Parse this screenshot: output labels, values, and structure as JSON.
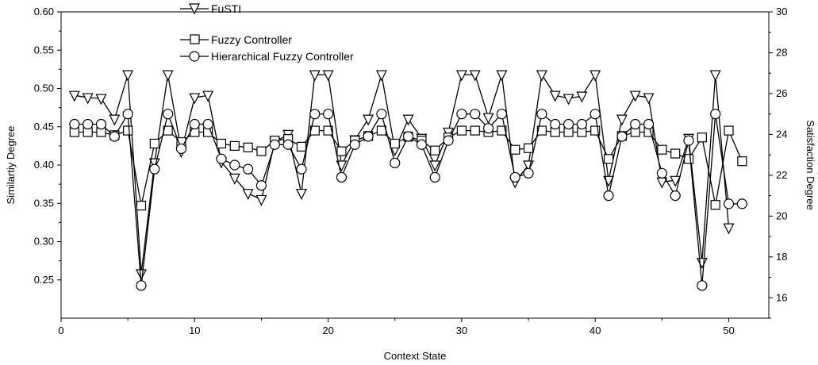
{
  "chart_data": {
    "type": "line",
    "xlabel": "Context State",
    "ylabel_left": "Similartiy Degree",
    "ylabel_right": "Satisfaction Degree",
    "xlim": [
      0,
      53
    ],
    "ylim_left": [
      0.2,
      0.6
    ],
    "ylim_right": [
      15,
      30
    ],
    "x_ticks": [
      0,
      10,
      20,
      30,
      40,
      50
    ],
    "y_left_ticks": [
      "0.25",
      "0.30",
      "0.35",
      "0.40",
      "0.45",
      "0.50",
      "0.55",
      "0.60"
    ],
    "y_right_ticks": [
      "16",
      "18",
      "20",
      "22",
      "24",
      "26",
      "28",
      "30"
    ],
    "legend_position": "top-left",
    "grid": false,
    "series": [
      {
        "name": "FuSTI",
        "axis": "left",
        "marker": "triangle-down",
        "x": [
          1,
          2,
          3,
          4,
          5,
          6,
          7,
          8,
          9,
          10,
          11,
          12,
          13,
          14,
          15,
          16,
          17,
          18,
          19,
          20,
          21,
          22,
          23,
          24,
          25,
          26,
          27,
          28,
          29,
          30,
          31,
          32,
          33,
          34,
          35,
          36,
          37,
          38,
          39,
          40,
          41,
          42,
          43,
          44,
          45,
          46,
          47,
          48,
          49,
          50
        ],
        "values": [
          0.491,
          0.488,
          0.487,
          0.46,
          0.518,
          0.258,
          0.403,
          0.518,
          0.418,
          0.488,
          0.491,
          0.404,
          0.383,
          0.363,
          0.355,
          0.43,
          0.44,
          0.363,
          0.518,
          0.518,
          0.4,
          0.433,
          0.46,
          0.518,
          0.42,
          0.46,
          0.435,
          0.4,
          0.443,
          0.518,
          0.518,
          0.462,
          0.518,
          0.378,
          0.4,
          0.518,
          0.491,
          0.487,
          0.49,
          0.518,
          0.38,
          0.46,
          0.491,
          0.488,
          0.378,
          0.38,
          0.435,
          0.273,
          0.518,
          0.318
        ]
      },
      {
        "name": "Fuzzy Controller",
        "axis": "left",
        "marker": "square",
        "x": [
          1,
          2,
          3,
          4,
          5,
          6,
          7,
          8,
          9,
          10,
          11,
          12,
          13,
          14,
          15,
          16,
          17,
          18,
          19,
          20,
          21,
          22,
          23,
          24,
          25,
          26,
          27,
          28,
          29,
          30,
          31,
          32,
          33,
          34,
          35,
          36,
          37,
          38,
          39,
          40,
          41,
          42,
          43,
          44,
          45,
          46,
          47,
          48,
          49,
          50,
          51
        ],
        "values": [
          0.443,
          0.443,
          0.443,
          0.439,
          0.445,
          0.347,
          0.428,
          0.445,
          0.43,
          0.443,
          0.443,
          0.428,
          0.425,
          0.423,
          0.418,
          0.432,
          0.434,
          0.424,
          0.445,
          0.445,
          0.418,
          0.432,
          0.438,
          0.445,
          0.428,
          0.437,
          0.432,
          0.419,
          0.436,
          0.445,
          0.445,
          0.443,
          0.445,
          0.42,
          0.422,
          0.445,
          0.443,
          0.443,
          0.443,
          0.445,
          0.408,
          0.438,
          0.443,
          0.443,
          0.42,
          0.415,
          0.408,
          0.436,
          0.348,
          0.445,
          0.405
        ]
      },
      {
        "name": "Hierarchical Fuzzy Controller",
        "axis": "right",
        "marker": "circle",
        "x": [
          1,
          2,
          3,
          4,
          5,
          6,
          7,
          8,
          9,
          10,
          11,
          12,
          13,
          14,
          15,
          16,
          17,
          18,
          19,
          20,
          21,
          22,
          23,
          24,
          25,
          26,
          27,
          28,
          29,
          30,
          31,
          32,
          33,
          34,
          35,
          36,
          37,
          38,
          39,
          40,
          41,
          42,
          43,
          44,
          45,
          46,
          47,
          48,
          49,
          50,
          51
        ],
        "values": [
          24.5,
          24.5,
          24.5,
          23.9,
          25.0,
          16.6,
          22.3,
          25.0,
          23.3,
          24.5,
          24.5,
          22.8,
          22.5,
          22.3,
          21.5,
          23.5,
          23.5,
          22.3,
          25.0,
          25.0,
          21.9,
          23.5,
          23.9,
          25.0,
          22.6,
          23.9,
          23.5,
          21.9,
          23.7,
          25.0,
          25.0,
          24.3,
          25.0,
          21.9,
          22.1,
          25.0,
          24.5,
          24.5,
          24.5,
          25.0,
          21.0,
          23.9,
          24.5,
          24.5,
          22.1,
          21.0,
          23.7,
          16.6,
          25.0,
          20.6,
          20.6
        ]
      }
    ]
  }
}
